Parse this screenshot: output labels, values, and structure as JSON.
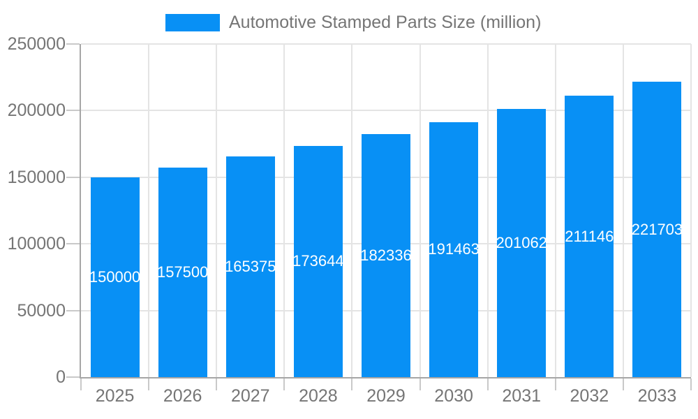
{
  "chart_data": {
    "type": "bar",
    "title": "Automotive Stamped Parts Size (million)",
    "categories": [
      "2025",
      "2026",
      "2027",
      "2028",
      "2029",
      "2030",
      "2031",
      "2032",
      "2033"
    ],
    "values": [
      150000,
      157500,
      165375,
      173644,
      182336,
      191463,
      201062,
      211146,
      221703
    ],
    "value_labels": [
      "150000",
      "157500",
      "165375",
      "173644",
      "182336",
      "191463",
      "201062",
      "211146",
      "221703"
    ],
    "xlabel": "",
    "ylabel": "",
    "ylim": [
      0,
      250000
    ],
    "yticks": [
      0,
      50000,
      100000,
      150000,
      200000,
      250000
    ],
    "ytick_labels": [
      "0",
      "50000",
      "100000",
      "150000",
      "200000",
      "250000"
    ],
    "grid": true,
    "legend_position": "top-center",
    "value_label_position": "center-of-bar"
  },
  "colors": {
    "bar": "#0890f5",
    "gridline": "#e4e4e4",
    "axis": "#a6a6a6",
    "tick": "#c9c9c9",
    "axis_text": "#757575",
    "value_label_text": "#ffffff",
    "background": "#ffffff"
  }
}
